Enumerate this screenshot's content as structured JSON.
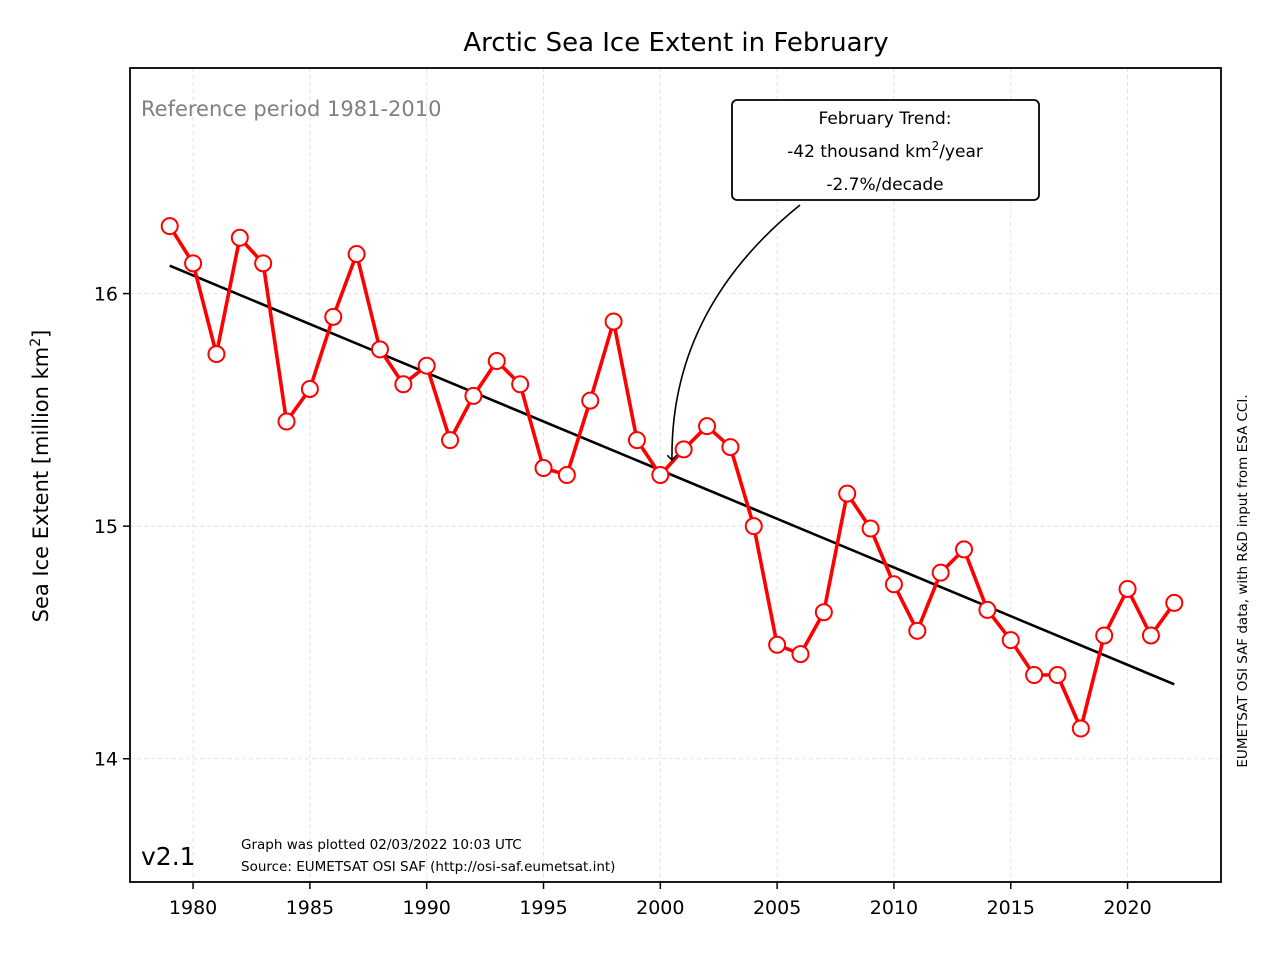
{
  "chart_data": {
    "type": "line",
    "title": "Arctic Sea Ice Extent in February",
    "ylabel_main": "Sea Ice Extent [million km",
    "ylabel_sup": "2",
    "ylabel_close": "]",
    "xlim": [
      1977.3,
      2024.0
    ],
    "ylim": [
      13.47,
      16.97
    ],
    "xticks": [
      1980,
      1985,
      1990,
      1995,
      2000,
      2005,
      2010,
      2015,
      2020
    ],
    "yticks": [
      14,
      15,
      16
    ],
    "grid": true,
    "series": [
      {
        "x": [
          1979,
          1980,
          1981,
          1982,
          1983,
          1984,
          1985,
          1986,
          1987,
          1988,
          1989,
          1990,
          1991,
          1992,
          1993,
          1994,
          1995,
          1996,
          1997,
          1998,
          1999,
          2000,
          2001,
          2002,
          2003,
          2004,
          2005,
          2006,
          2007,
          2008,
          2009,
          2010,
          2011,
          2012,
          2013,
          2014,
          2015,
          2016,
          2017,
          2018,
          2019,
          2020,
          2021,
          2022
        ],
        "values": [
          16.29,
          16.13,
          15.74,
          16.24,
          16.13,
          15.45,
          15.59,
          15.9,
          16.17,
          15.76,
          15.61,
          15.69,
          15.37,
          15.56,
          15.71,
          15.61,
          15.25,
          15.22,
          15.54,
          15.88,
          15.37,
          15.22,
          15.33,
          15.43,
          15.34,
          15.0,
          14.49,
          14.45,
          14.63,
          15.14,
          14.99,
          14.75,
          14.55,
          14.8,
          14.9,
          14.64,
          14.51,
          14.36,
          14.36,
          14.13,
          14.53,
          14.73,
          14.53,
          14.67
        ],
        "color": "#ff0000",
        "marker_fill": "#ffffff"
      }
    ],
    "trend": {
      "x": [
        1979,
        2022
      ],
      "values": [
        16.12,
        14.32
      ],
      "color": "#000000"
    },
    "reference_text": "Reference period 1981-2010",
    "annotation": {
      "line1": "February Trend:",
      "line2_main": "-42 thousand km",
      "line2_sup": "2",
      "line2_tail": "/year",
      "line3": "-2.7%/decade",
      "arrow_target": {
        "x": 2000.5,
        "y": 15.25
      }
    },
    "version_label": "v2.1",
    "plotted_note": "Graph was plotted 02/03/2022 10:03 UTC",
    "source_note": "Source: EUMETSAT OSI SAF (http://osi-saf.eumetsat.int)",
    "side_note": "EUMETSAT OSI SAF data, with R&D input from ESA CCI."
  }
}
